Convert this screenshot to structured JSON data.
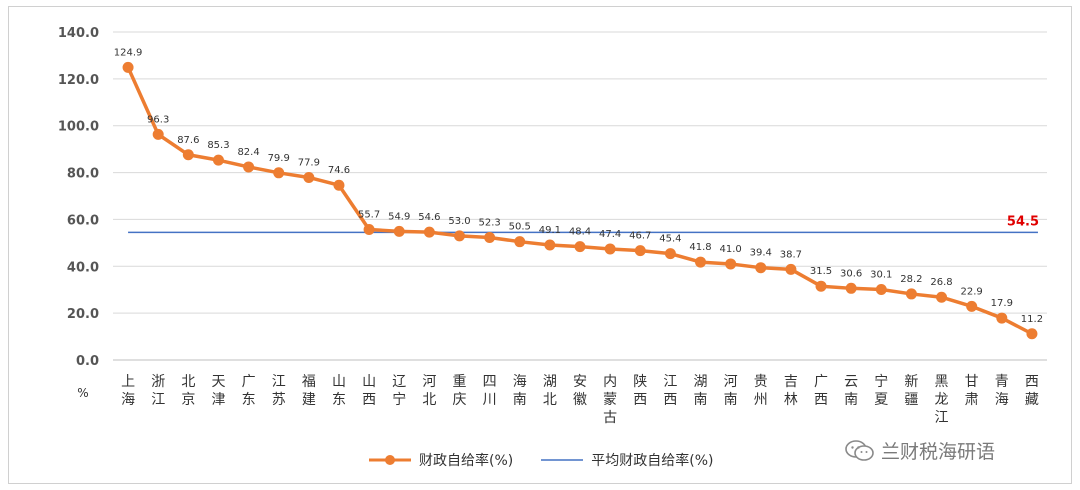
{
  "chart_data": {
    "type": "line",
    "categories": [
      "上\n海",
      "浙\n江",
      "北\n京",
      "天\n津",
      "广\n东",
      "江\n苏",
      "福\n建",
      "山\n东",
      "山\n西",
      "辽\n宁",
      "河\n北",
      "重\n庆",
      "四\n川",
      "海\n南",
      "湖\n北",
      "安\n徽",
      "内\n蒙\n古",
      "陕\n西",
      "江\n西",
      "湖\n南",
      "河\n南",
      "贵\n州",
      "吉\n林",
      "广\n西",
      "云\n南",
      "宁\n夏",
      "新\n疆",
      "黑\n龙\n江",
      "甘\n肃",
      "青\n海",
      "西\n藏"
    ],
    "series": [
      {
        "name": "财政自给率(%)",
        "color": "#ed7d31",
        "values": [
          124.9,
          96.3,
          87.6,
          85.3,
          82.4,
          79.9,
          77.9,
          74.6,
          55.7,
          54.9,
          54.6,
          53.0,
          52.3,
          50.5,
          49.1,
          48.4,
          47.4,
          46.7,
          45.4,
          41.8,
          41.0,
          39.4,
          38.7,
          31.5,
          30.6,
          30.1,
          28.2,
          26.8,
          22.9,
          17.9,
          11.2
        ]
      },
      {
        "name": "平均财政自给率(%)",
        "color": "#4472c4",
        "value": 54.5,
        "label": "54.5"
      }
    ],
    "value_labels": [
      "124.9",
      "96.3",
      "87.6",
      "85.3",
      "82.4",
      "79.9",
      "77.9",
      "74.6",
      "55.7",
      "54.9",
      "54.6",
      "53.0",
      "52.3",
      "50.5",
      "49.1",
      "48.4",
      "47.4",
      "46.7",
      "45.4",
      "41.8",
      "41.0",
      "39.4",
      "38.7",
      "31.5",
      "30.6",
      "30.1",
      "28.2",
      "26.8",
      "22.9",
      "17.9",
      "11.2"
    ],
    "yticks": [
      "0.0",
      "20.0",
      "40.0",
      "60.0",
      "80.0",
      "100.0",
      "120.0",
      "140.0"
    ],
    "ylim": [
      0,
      140
    ],
    "unit_label": "%",
    "grid": true,
    "legend_position": "bottom"
  },
  "watermark": {
    "text": "兰财税海研语",
    "icon": "wechat-icon"
  }
}
